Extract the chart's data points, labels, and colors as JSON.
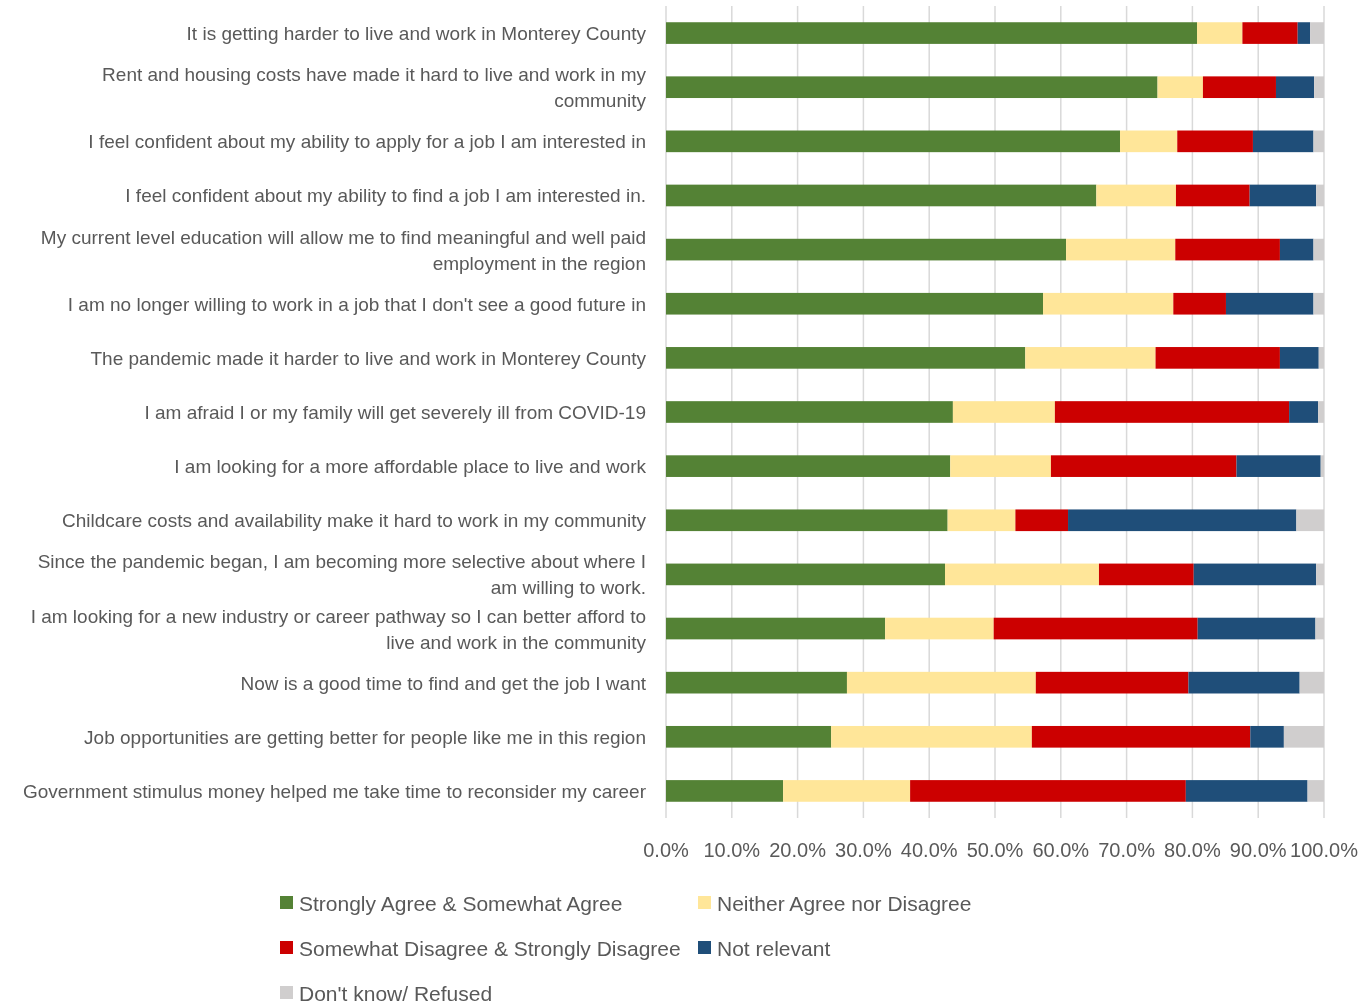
{
  "chart_data": {
    "type": "bar",
    "orientation": "horizontal",
    "stacked": true,
    "grid": "x",
    "legend": "bottom",
    "categories": [
      "It is getting harder to live and work in Monterey County",
      "Rent and housing costs have made it hard to live and work in my community",
      "I feel confident about my ability to apply for a job I am interested in",
      "I feel confident about my ability to find a job I am interested in.",
      "My current level education will allow me to find meaningful and well paid employment in the region",
      "I am no longer willing to work in a job that I don't see a good future in",
      "The pandemic made it harder to live and work in Monterey County",
      "I am afraid I or my family will get severely ill from COVID-19",
      "I am looking for a more affordable place to live and work",
      "Childcare costs and availability make it hard to work in my community",
      "Since the pandemic began, I am becoming more selective about where I am willing to work.",
      "I am looking for a new industry or career pathway so I can better afford to live and work in the community",
      "Now is a good time to find and get the job I want",
      "Job opportunities are getting better for people like me in this region",
      "Government stimulus money helped me take time to reconsider my career"
    ],
    "series": [
      {
        "name": "Strongly Agree & Somewhat Agree",
        "color": "#548235",
        "values": [
          80.7,
          74.7,
          69.0,
          65.4,
          60.8,
          57.3,
          54.6,
          43.6,
          43.2,
          42.8,
          42.4,
          33.3,
          27.5,
          25.1,
          17.8
        ]
      },
      {
        "name": "Neither Agree nor Disagree",
        "color": "#ffe699",
        "values": [
          6.9,
          6.9,
          8.7,
          12.1,
          16.6,
          19.8,
          19.8,
          15.5,
          15.3,
          10.3,
          23.4,
          16.5,
          28.7,
          30.5,
          19.3
        ]
      },
      {
        "name": "Somewhat Disagree & Strongly Disagree",
        "color": "#cc0000",
        "values": [
          8.4,
          11.1,
          11.5,
          11.2,
          15.9,
          8.0,
          18.9,
          35.6,
          28.2,
          8.0,
          14.4,
          31.0,
          23.2,
          33.2,
          41.9
        ]
      },
      {
        "name": "Not relevant",
        "color": "#1f4e79",
        "values": [
          1.9,
          5.8,
          9.2,
          10.1,
          5.1,
          13.3,
          5.9,
          4.4,
          12.8,
          34.7,
          18.6,
          17.9,
          16.9,
          5.1,
          18.5
        ]
      },
      {
        "name": "Don't know/ Refused",
        "color": "#d0cece",
        "values": [
          2.1,
          1.5,
          1.6,
          1.2,
          1.6,
          1.6,
          0.8,
          0.9,
          0.5,
          4.2,
          1.2,
          1.3,
          3.7,
          6.1,
          2.5
        ]
      }
    ],
    "xlim": [
      0,
      100
    ],
    "xticks": [
      {
        "value": 0,
        "label": "0.0%"
      },
      {
        "value": 10,
        "label": "10.0%"
      },
      {
        "value": 20,
        "label": "20.0%"
      },
      {
        "value": 30,
        "label": "30.0%"
      },
      {
        "value": 40,
        "label": "40.0%"
      },
      {
        "value": 50,
        "label": "50.0%"
      },
      {
        "value": 60,
        "label": "60.0%"
      },
      {
        "value": 70,
        "label": "70.0%"
      },
      {
        "value": 80,
        "label": "80.0%"
      },
      {
        "value": 90,
        "label": "90.0%"
      },
      {
        "value": 100,
        "label": "100.0%"
      }
    ]
  }
}
